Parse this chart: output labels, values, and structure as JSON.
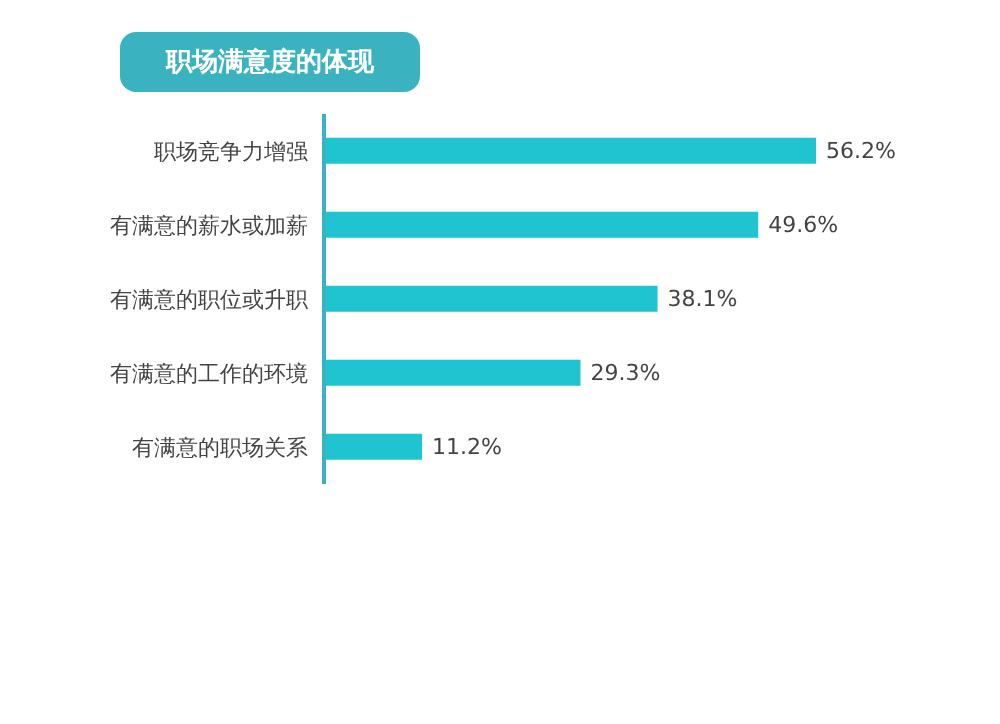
{
  "chart_data": {
    "type": "bar",
    "orientation": "horizontal",
    "title": "职场满意度的体现",
    "categories": [
      "职场竞争力增强",
      "有满意的薪水或加薪",
      "有满意的职位或升职",
      "有满意的工作的环境",
      "有满意的职场关系"
    ],
    "values": [
      56.2,
      49.6,
      38.1,
      29.3,
      11.2
    ],
    "value_labels": [
      "56.2%",
      "49.6%",
      "38.1%",
      "29.3%",
      "11.2%"
    ],
    "color": "#1fc4d0"
  }
}
